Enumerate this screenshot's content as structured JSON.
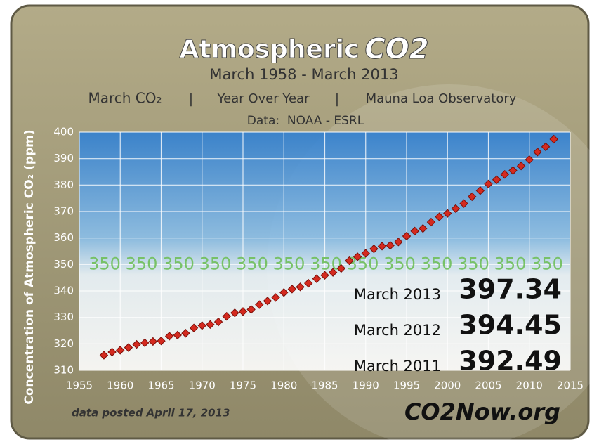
{
  "chart_data": {
    "type": "scatter",
    "title": "Atmospheric",
    "title_suffix": "CO2",
    "subtitle": "March 1958 - March 2013",
    "subheading": [
      "March CO₂",
      "Year Over Year",
      "Mauna Loa Observatory"
    ],
    "source": "Data:  NOAA - ESRL",
    "y_label": "Concentration of Atmospheric CO₂ (ppm)",
    "x": [
      1958,
      1959,
      1960,
      1961,
      1962,
      1963,
      1964,
      1965,
      1966,
      1967,
      1968,
      1969,
      1970,
      1971,
      1972,
      1973,
      1974,
      1975,
      1976,
      1977,
      1978,
      1979,
      1980,
      1981,
      1982,
      1983,
      1984,
      1985,
      1986,
      1987,
      1988,
      1989,
      1990,
      1991,
      1992,
      1993,
      1994,
      1995,
      1996,
      1997,
      1998,
      1999,
      2000,
      2001,
      2002,
      2003,
      2004,
      2005,
      2006,
      2007,
      2008,
      2009,
      2010,
      2011,
      2012,
      2013
    ],
    "values": [
      315.7,
      316.9,
      317.6,
      318.6,
      319.8,
      320.4,
      320.9,
      321.1,
      322.9,
      323.3,
      324.0,
      326.0,
      326.9,
      327.3,
      328.3,
      330.4,
      331.7,
      332.2,
      333.0,
      334.8,
      336.2,
      337.5,
      339.4,
      340.7,
      341.5,
      342.9,
      344.6,
      345.9,
      347.0,
      348.5,
      351.4,
      352.9,
      354.2,
      355.9,
      356.9,
      357.2,
      358.5,
      360.7,
      362.6,
      363.6,
      366.0,
      368.0,
      369.3,
      371.1,
      373.0,
      375.6,
      377.9,
      380.4,
      382.0,
      384.0,
      385.5,
      387.2,
      389.6,
      392.49,
      394.45,
      397.34
    ],
    "color": "#d42a1f",
    "xlim": [
      1955,
      2015
    ],
    "xticks": [
      1955,
      1960,
      1965,
      1970,
      1975,
      1980,
      1985,
      1990,
      1995,
      2000,
      2005,
      2010,
      2015
    ],
    "ylim": [
      310,
      400
    ],
    "yticks": [
      310,
      320,
      330,
      340,
      350,
      360,
      370,
      380,
      390,
      400
    ],
    "grid": true,
    "reference_value": 350,
    "annotations": [
      {
        "label": "March 2013",
        "value": 397.34
      },
      {
        "label": "March 2012",
        "value": 394.45
      },
      {
        "label": "March 2011",
        "value": 392.49
      }
    ],
    "footnote": "data posted April 17, 2013",
    "logo": "CO2Now.org"
  }
}
